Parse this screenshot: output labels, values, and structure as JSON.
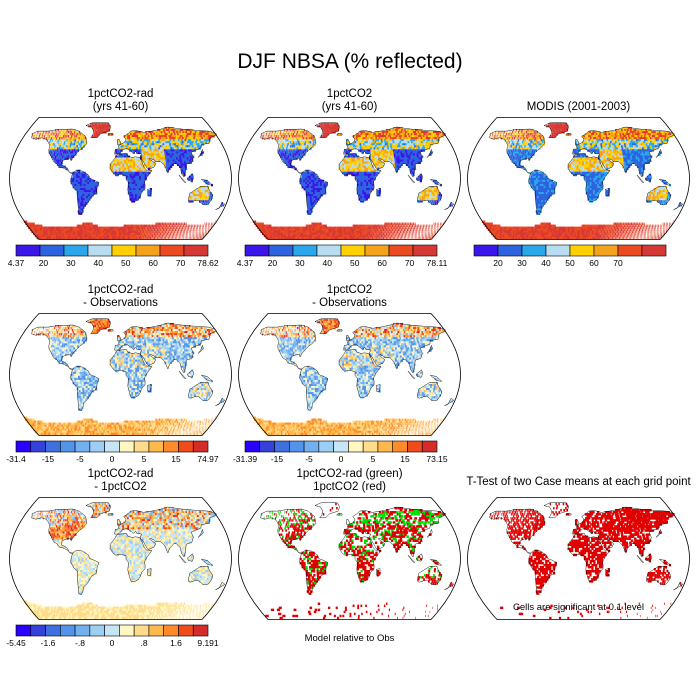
{
  "title": "DJF NBSA (% reflected)",
  "chart_data": [
    {
      "type": "heatmap",
      "title_lines": [
        "1pctCO2-rad",
        "(yrs 41-60)"
      ],
      "palette": "abs",
      "colorbar": {
        "colors": [
          "#3b16e8",
          "#2e63e0",
          "#2aa6ea",
          "#b9ddf0",
          "#ffcf00",
          "#f4a21c",
          "#ec4a21",
          "#d63835"
        ],
        "labels": [
          "4.37",
          "20",
          "30",
          "40",
          "50",
          "60",
          "70",
          "78.62"
        ],
        "edges": true
      }
    },
    {
      "type": "heatmap",
      "title_lines": [
        "1pctCO2",
        "(yrs 41-60)"
      ],
      "palette": "abs",
      "colorbar": {
        "colors": [
          "#3b16e8",
          "#2e63e0",
          "#2aa6ea",
          "#b9ddf0",
          "#ffcf00",
          "#f4a21c",
          "#ec4a21",
          "#d63835"
        ],
        "labels": [
          "4.37",
          "20",
          "30",
          "40",
          "50",
          "60",
          "70",
          "78.11"
        ],
        "edges": true
      }
    },
    {
      "type": "heatmap",
      "title_lines": [
        "MODIS (2001-2003)"
      ],
      "palette": "obs",
      "colorbar": {
        "colors": [
          "#3b16e8",
          "#2e63e0",
          "#2aa6ea",
          "#b9ddf0",
          "#ffcf00",
          "#f4a21c",
          "#ec4a21",
          "#d63835"
        ],
        "labels": [
          "20",
          "30",
          "40",
          "50",
          "60",
          "70"
        ],
        "edges": false
      }
    },
    {
      "type": "heatmap",
      "title_lines": [
        "1pctCO2-rad",
        "- Observations"
      ],
      "palette": "diff",
      "colorbar": {
        "colors": [
          "#2a00ff",
          "#3442d9",
          "#3f70e0",
          "#5393ea",
          "#73b0ef",
          "#9ccdf2",
          "#c6e6f7",
          "#fff6c0",
          "#ffdc8a",
          "#ffb84b",
          "#ff8a2a",
          "#f04b1b",
          "#d62b2b"
        ],
        "labels": [
          "-31.4",
          "-15",
          "-5",
          "0",
          "5",
          "15",
          "74.97"
        ],
        "edges": true
      }
    },
    {
      "type": "heatmap",
      "title_lines": [
        "1pctCO2",
        "- Observations"
      ],
      "palette": "diff",
      "colorbar": {
        "colors": [
          "#2a00ff",
          "#3442d9",
          "#3f70e0",
          "#5393ea",
          "#73b0ef",
          "#9ccdf2",
          "#c6e6f7",
          "#fff6c0",
          "#ffdc8a",
          "#ffb84b",
          "#ff8a2a",
          "#f04b1b",
          "#d62b2b"
        ],
        "labels": [
          "-31.39",
          "-15",
          "-5",
          "0",
          "5",
          "15",
          "73.15"
        ],
        "edges": true
      }
    },
    {
      "type": "heatmap",
      "title_lines": [
        "1pctCO2-rad",
        "- 1pctCO2"
      ],
      "palette": "diff2",
      "colorbar": {
        "colors": [
          "#2a00ff",
          "#3442d9",
          "#3f70e0",
          "#5393ea",
          "#73b0ef",
          "#9ccdf2",
          "#c6e6f7",
          "#fff6c0",
          "#ffdc8a",
          "#ffb84b",
          "#ff8a2a",
          "#f04b1b",
          "#d62b2b"
        ],
        "labels": [
          "-5.45",
          "-1.6",
          "-.8",
          "0",
          ".8",
          "1.6",
          "9.191"
        ],
        "edges": true
      }
    },
    {
      "type": "heatmap",
      "title_lines": [
        "1pctCO2-rad (green)",
        "1pctCO2 (red)"
      ],
      "palette": "rg",
      "note": "Model relative to Obs"
    },
    {
      "type": "heatmap",
      "title_lines": [
        "T-Test of two Case means at each grid point"
      ],
      "palette": "red",
      "note": "Cells are significant at 0.1 level"
    }
  ]
}
